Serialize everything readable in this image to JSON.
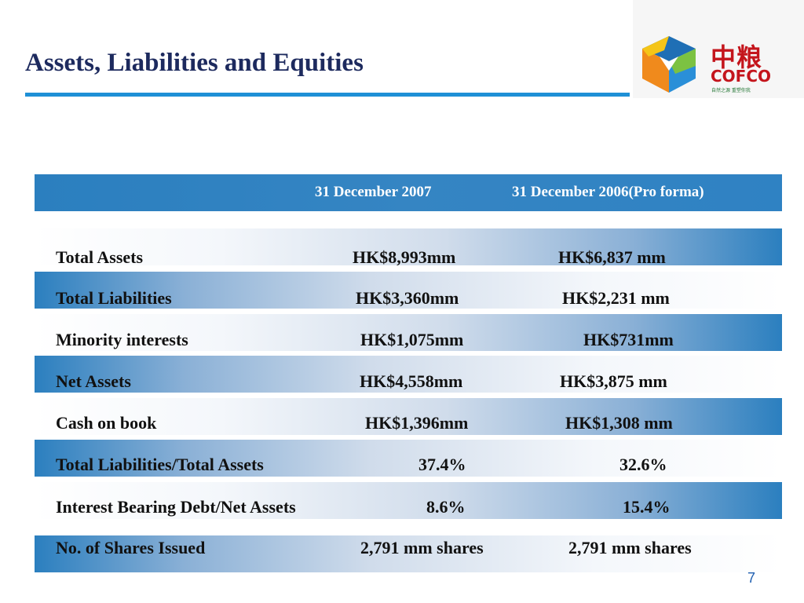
{
  "slide": {
    "title": "Assets, Liabilities and Equities",
    "page_number": "7"
  },
  "logo": {
    "chinese": "中粮",
    "english": "COFCO",
    "tagline": "自然之源 重塑你我",
    "colors": {
      "brand_red": "#c4151c",
      "cube_orange": "#f08a1c",
      "cube_blue": "#1f6fb5",
      "cube_green": "#7cc242"
    }
  },
  "table": {
    "headers": [
      "",
      "31 December 2007",
      "31 December 2006(Pro forma)"
    ],
    "rows": [
      {
        "label": "Total Assets",
        "v2007": "HK$8,993mm",
        "v2006": "HK$6,837 mm"
      },
      {
        "label": "Total Liabilities",
        "v2007": "HK$3,360mm",
        "v2006": "HK$2,231 mm"
      },
      {
        "label": "Minority interests",
        "v2007": "HK$1,075mm",
        "v2006": "HK$731mm"
      },
      {
        "label": "Net Assets",
        "v2007": "HK$4,558mm",
        "v2006": "HK$3,875 mm"
      },
      {
        "label": "Cash on book",
        "v2007": "HK$1,396mm",
        "v2006": "HK$1,308 mm"
      },
      {
        "label": "Total Liabilities/Total Assets",
        "v2007": "37.4%",
        "v2006": "32.6%"
      },
      {
        "label": "Interest Bearing Debt/Net Assets",
        "v2007": "8.6%",
        "v2006": "15.4%"
      },
      {
        "label": "No. of Shares Issued",
        "v2007": "2,791 mm shares",
        "v2006": "2,791 mm shares"
      }
    ]
  },
  "colors": {
    "title": "#1d2a5e",
    "accent_blue": "#1e90d6",
    "header_blue": "#2b7fbf"
  }
}
